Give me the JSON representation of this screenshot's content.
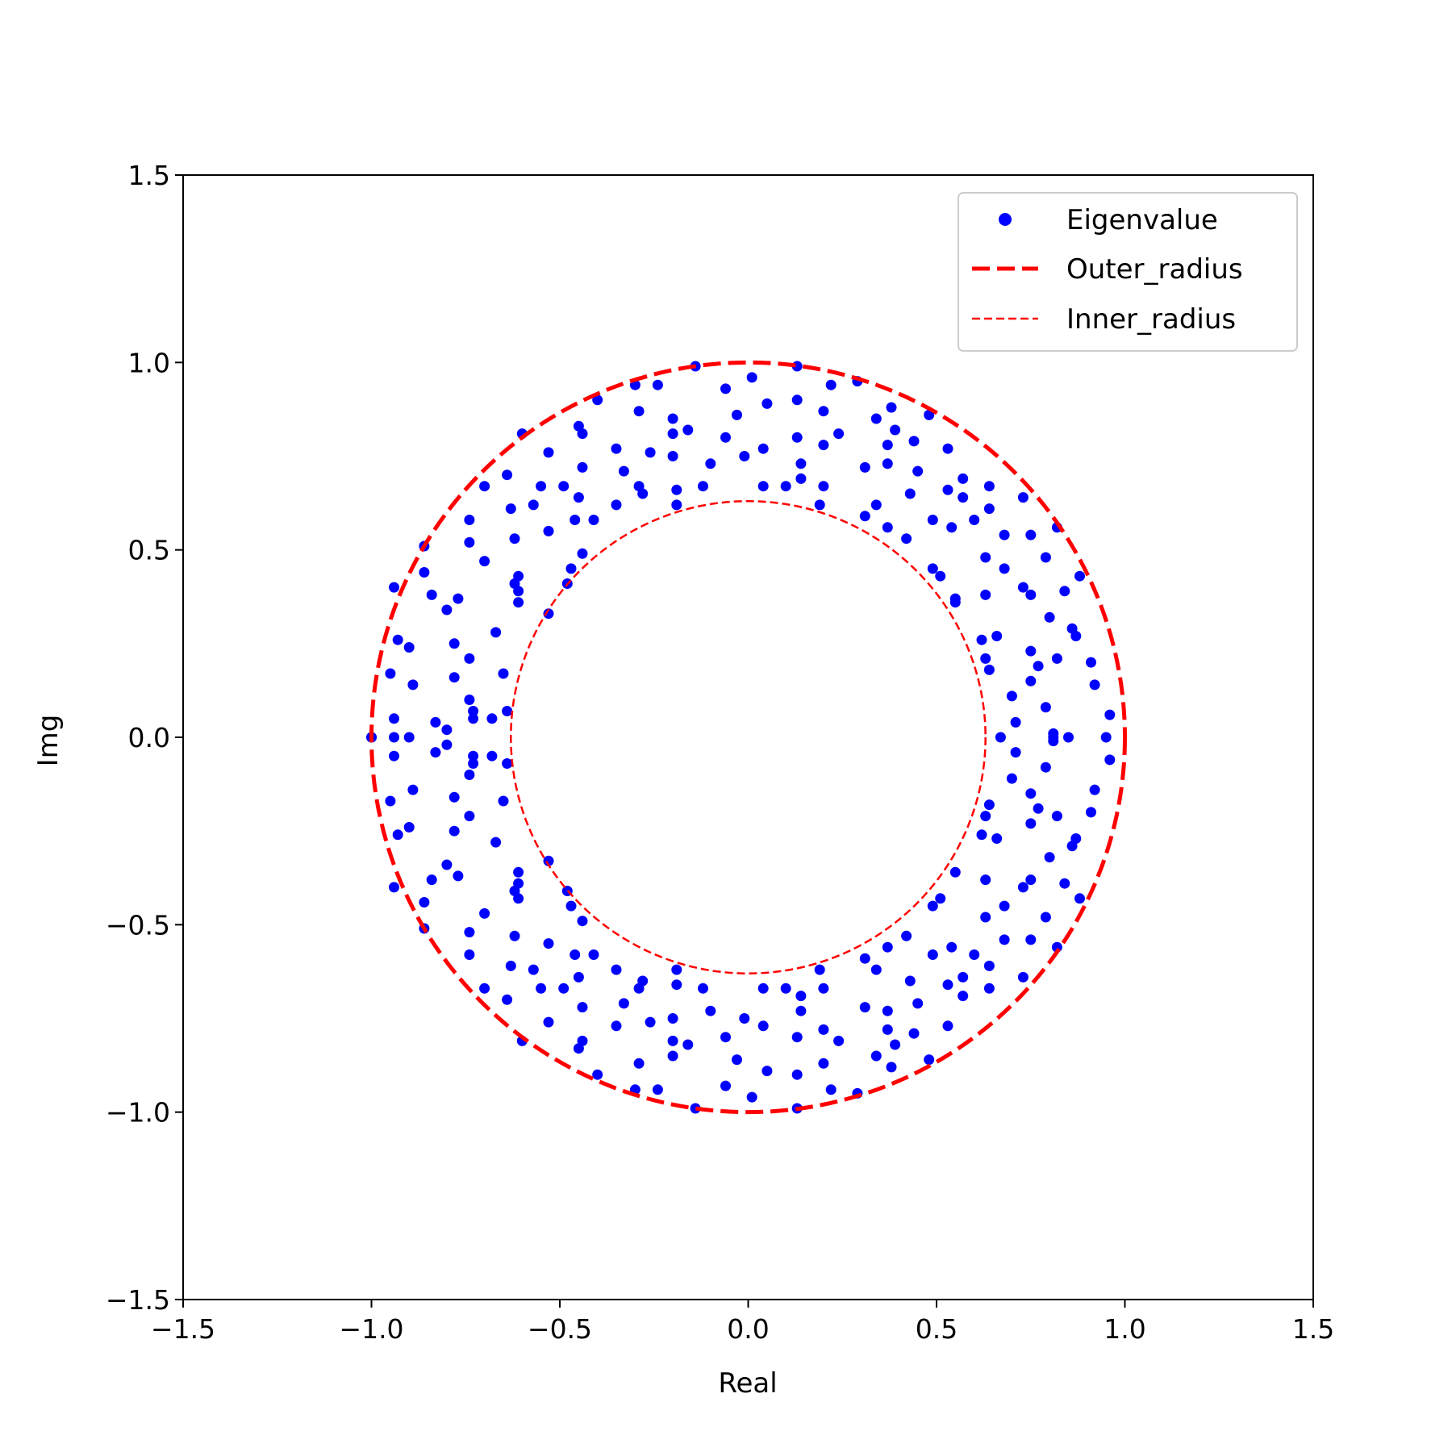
{
  "chart_data": {
    "type": "scatter",
    "title": "",
    "xlabel": "Real",
    "ylabel": "Img",
    "xlim": [
      -1.5,
      1.5
    ],
    "ylim": [
      -1.5,
      1.5
    ],
    "xticks": [
      "−1.5",
      "−1.0",
      "−0.5",
      "0.0",
      "0.5",
      "1.0",
      "1.5"
    ],
    "yticks": [
      "−1.5",
      "−1.0",
      "−0.5",
      "0.0",
      "0.5",
      "1.0",
      "1.5"
    ],
    "grid": false,
    "legend_position": "top-right",
    "colors": {
      "eigenvalue": "#0000ff",
      "outer_radius": "#ff0000",
      "inner_radius": "#ff0000"
    },
    "series": [
      {
        "name": "Eigenvalue",
        "kind": "points",
        "points": [
          [
            -1.0,
            0.0
          ],
          [
            -0.94,
            0.4
          ],
          [
            -0.93,
            0.26
          ],
          [
            -0.95,
            0.17
          ],
          [
            -0.94,
            0.05
          ],
          [
            -0.94,
            0.0
          ],
          [
            -0.9,
            0.24
          ],
          [
            -0.89,
            0.14
          ],
          [
            -0.9,
            0.0
          ],
          [
            -0.86,
            0.51
          ],
          [
            -0.86,
            0.44
          ],
          [
            -0.84,
            0.38
          ],
          [
            -0.83,
            0.04
          ],
          [
            -0.8,
            0.02
          ],
          [
            -0.8,
            0.34
          ],
          [
            -0.78,
            0.25
          ],
          [
            -0.78,
            0.16
          ],
          [
            -0.77,
            0.37
          ],
          [
            -0.74,
            0.58
          ],
          [
            -0.74,
            0.52
          ],
          [
            -0.74,
            0.21
          ],
          [
            -0.74,
            0.1
          ],
          [
            -0.73,
            0.07
          ],
          [
            -0.73,
            0.05
          ],
          [
            -0.7,
            0.67
          ],
          [
            -0.7,
            0.47
          ],
          [
            -0.68,
            0.05
          ],
          [
            -0.67,
            0.28
          ],
          [
            -0.65,
            0.17
          ],
          [
            -0.64,
            0.7
          ],
          [
            -0.63,
            0.61
          ],
          [
            -0.62,
            0.53
          ],
          [
            -0.62,
            0.41
          ],
          [
            -0.61,
            0.39
          ],
          [
            -0.61,
            0.36
          ],
          [
            -0.61,
            0.43
          ],
          [
            -0.64,
            0.07
          ],
          [
            -0.6,
            0.81
          ],
          [
            -0.57,
            0.62
          ],
          [
            -0.55,
            0.67
          ],
          [
            -0.53,
            0.76
          ],
          [
            -0.53,
            0.55
          ],
          [
            -0.53,
            0.33
          ],
          [
            -0.49,
            0.67
          ],
          [
            -0.48,
            0.41
          ],
          [
            -0.47,
            0.45
          ],
          [
            -0.46,
            0.58
          ],
          [
            -0.45,
            0.64
          ],
          [
            -0.45,
            0.83
          ],
          [
            -0.44,
            0.81
          ],
          [
            -0.44,
            0.72
          ],
          [
            -0.44,
            0.49
          ],
          [
            -0.41,
            0.58
          ],
          [
            -0.4,
            0.9
          ],
          [
            -0.35,
            0.77
          ],
          [
            -0.35,
            0.62
          ],
          [
            -0.33,
            0.71
          ],
          [
            -0.3,
            0.94
          ],
          [
            -0.29,
            0.87
          ],
          [
            -0.29,
            0.67
          ],
          [
            -0.28,
            0.65
          ],
          [
            -0.26,
            0.76
          ],
          [
            -0.24,
            0.94
          ],
          [
            -0.2,
            0.85
          ],
          [
            -0.2,
            0.81
          ],
          [
            -0.2,
            0.75
          ],
          [
            -0.19,
            0.66
          ],
          [
            -0.19,
            0.62
          ],
          [
            -0.16,
            0.82
          ],
          [
            -0.14,
            0.99
          ],
          [
            -0.12,
            0.67
          ],
          [
            -0.1,
            0.73
          ],
          [
            -0.06,
            0.93
          ],
          [
            -0.06,
            0.8
          ],
          [
            -0.03,
            0.86
          ],
          [
            -0.01,
            0.75
          ],
          [
            0.01,
            0.96
          ],
          [
            0.04,
            0.77
          ],
          [
            0.05,
            0.89
          ],
          [
            0.04,
            0.67
          ],
          [
            0.1,
            0.67
          ],
          [
            0.13,
            0.9
          ],
          [
            0.13,
            0.99
          ],
          [
            0.13,
            0.8
          ],
          [
            0.14,
            0.73
          ],
          [
            0.14,
            0.69
          ],
          [
            0.19,
            0.62
          ],
          [
            0.2,
            0.87
          ],
          [
            0.2,
            0.78
          ],
          [
            0.2,
            0.67
          ],
          [
            0.22,
            0.94
          ],
          [
            0.24,
            0.81
          ],
          [
            0.29,
            0.95
          ],
          [
            0.31,
            0.72
          ],
          [
            0.31,
            0.59
          ],
          [
            0.34,
            0.85
          ],
          [
            0.34,
            0.62
          ],
          [
            0.37,
            0.78
          ],
          [
            0.37,
            0.73
          ],
          [
            0.37,
            0.56
          ],
          [
            0.38,
            0.88
          ],
          [
            0.39,
            0.82
          ],
          [
            0.42,
            0.53
          ],
          [
            0.43,
            0.65
          ],
          [
            0.44,
            0.79
          ],
          [
            0.45,
            0.71
          ],
          [
            0.48,
            0.86
          ],
          [
            0.49,
            0.58
          ],
          [
            0.49,
            0.45
          ],
          [
            0.51,
            0.43
          ],
          [
            0.53,
            0.77
          ],
          [
            0.53,
            0.66
          ],
          [
            0.54,
            0.56
          ],
          [
            0.55,
            0.36
          ],
          [
            0.57,
            0.64
          ],
          [
            0.57,
            0.69
          ],
          [
            0.6,
            0.58
          ],
          [
            0.62,
            0.26
          ],
          [
            0.63,
            0.48
          ],
          [
            0.63,
            0.38
          ],
          [
            0.63,
            0.21
          ],
          [
            0.64,
            0.18
          ],
          [
            0.64,
            0.67
          ],
          [
            0.64,
            0.61
          ],
          [
            0.66,
            0.27
          ],
          [
            0.67,
            0.0
          ],
          [
            0.68,
            0.54
          ],
          [
            0.68,
            0.45
          ],
          [
            0.7,
            0.11
          ],
          [
            0.71,
            0.04
          ],
          [
            0.73,
            0.64
          ],
          [
            0.73,
            0.4
          ],
          [
            0.75,
            0.54
          ],
          [
            0.75,
            0.38
          ],
          [
            0.75,
            0.23
          ],
          [
            0.75,
            0.15
          ],
          [
            0.77,
            0.19
          ],
          [
            0.79,
            0.48
          ],
          [
            0.79,
            0.08
          ],
          [
            0.8,
            0.32
          ],
          [
            0.81,
            0.01
          ],
          [
            0.81,
            0.0
          ],
          [
            0.82,
            0.56
          ],
          [
            0.82,
            0.21
          ],
          [
            0.84,
            0.39
          ],
          [
            0.86,
            0.29
          ],
          [
            0.87,
            0.27
          ],
          [
            0.88,
            0.43
          ],
          [
            0.91,
            0.2
          ],
          [
            0.92,
            0.14
          ],
          [
            0.95,
            0.0
          ],
          [
            0.96,
            0.06
          ],
          [
            0.85,
            0.0
          ],
          [
            0.55,
            0.37
          ],
          [
            -1.0,
            -0.0
          ],
          [
            -0.94,
            -0.4
          ],
          [
            -0.93,
            -0.26
          ],
          [
            -0.95,
            -0.17
          ],
          [
            -0.94,
            -0.05
          ],
          [
            -0.9,
            -0.24
          ],
          [
            -0.89,
            -0.14
          ],
          [
            -0.86,
            -0.51
          ],
          [
            -0.86,
            -0.44
          ],
          [
            -0.84,
            -0.38
          ],
          [
            -0.83,
            -0.04
          ],
          [
            -0.8,
            -0.02
          ],
          [
            -0.8,
            -0.34
          ],
          [
            -0.78,
            -0.25
          ],
          [
            -0.78,
            -0.16
          ],
          [
            -0.77,
            -0.37
          ],
          [
            -0.74,
            -0.58
          ],
          [
            -0.74,
            -0.52
          ],
          [
            -0.74,
            -0.21
          ],
          [
            -0.74,
            -0.1
          ],
          [
            -0.73,
            -0.07
          ],
          [
            -0.73,
            -0.05
          ],
          [
            -0.7,
            -0.67
          ],
          [
            -0.7,
            -0.47
          ],
          [
            -0.68,
            -0.05
          ],
          [
            -0.67,
            -0.28
          ],
          [
            -0.65,
            -0.17
          ],
          [
            -0.64,
            -0.7
          ],
          [
            -0.63,
            -0.61
          ],
          [
            -0.62,
            -0.53
          ],
          [
            -0.62,
            -0.41
          ],
          [
            -0.61,
            -0.39
          ],
          [
            -0.61,
            -0.36
          ],
          [
            -0.61,
            -0.43
          ],
          [
            -0.64,
            -0.07
          ],
          [
            -0.6,
            -0.81
          ],
          [
            -0.57,
            -0.62
          ],
          [
            -0.55,
            -0.67
          ],
          [
            -0.53,
            -0.76
          ],
          [
            -0.53,
            -0.55
          ],
          [
            -0.53,
            -0.33
          ],
          [
            -0.49,
            -0.67
          ],
          [
            -0.48,
            -0.41
          ],
          [
            -0.47,
            -0.45
          ],
          [
            -0.46,
            -0.58
          ],
          [
            -0.45,
            -0.64
          ],
          [
            -0.45,
            -0.83
          ],
          [
            -0.44,
            -0.81
          ],
          [
            -0.44,
            -0.72
          ],
          [
            -0.44,
            -0.49
          ],
          [
            -0.41,
            -0.58
          ],
          [
            -0.4,
            -0.9
          ],
          [
            -0.35,
            -0.77
          ],
          [
            -0.35,
            -0.62
          ],
          [
            -0.33,
            -0.71
          ],
          [
            -0.3,
            -0.94
          ],
          [
            -0.29,
            -0.87
          ],
          [
            -0.29,
            -0.67
          ],
          [
            -0.28,
            -0.65
          ],
          [
            -0.26,
            -0.76
          ],
          [
            -0.24,
            -0.94
          ],
          [
            -0.2,
            -0.85
          ],
          [
            -0.2,
            -0.81
          ],
          [
            -0.2,
            -0.75
          ],
          [
            -0.19,
            -0.66
          ],
          [
            -0.19,
            -0.62
          ],
          [
            -0.16,
            -0.82
          ],
          [
            -0.14,
            -0.99
          ],
          [
            -0.12,
            -0.67
          ],
          [
            -0.1,
            -0.73
          ],
          [
            -0.06,
            -0.93
          ],
          [
            -0.06,
            -0.8
          ],
          [
            -0.03,
            -0.86
          ],
          [
            -0.01,
            -0.75
          ],
          [
            0.01,
            -0.96
          ],
          [
            0.04,
            -0.77
          ],
          [
            0.05,
            -0.89
          ],
          [
            0.04,
            -0.67
          ],
          [
            0.1,
            -0.67
          ],
          [
            0.13,
            -0.9
          ],
          [
            0.13,
            -0.99
          ],
          [
            0.13,
            -0.8
          ],
          [
            0.14,
            -0.73
          ],
          [
            0.14,
            -0.69
          ],
          [
            0.19,
            -0.62
          ],
          [
            0.2,
            -0.87
          ],
          [
            0.2,
            -0.78
          ],
          [
            0.2,
            -0.67
          ],
          [
            0.22,
            -0.94
          ],
          [
            0.24,
            -0.81
          ],
          [
            0.29,
            -0.95
          ],
          [
            0.31,
            -0.72
          ],
          [
            0.31,
            -0.59
          ],
          [
            0.34,
            -0.85
          ],
          [
            0.34,
            -0.62
          ],
          [
            0.37,
            -0.78
          ],
          [
            0.37,
            -0.73
          ],
          [
            0.37,
            -0.56
          ],
          [
            0.38,
            -0.88
          ],
          [
            0.39,
            -0.82
          ],
          [
            0.42,
            -0.53
          ],
          [
            0.43,
            -0.65
          ],
          [
            0.44,
            -0.79
          ],
          [
            0.45,
            -0.71
          ],
          [
            0.48,
            -0.86
          ],
          [
            0.49,
            -0.58
          ],
          [
            0.49,
            -0.45
          ],
          [
            0.51,
            -0.43
          ],
          [
            0.53,
            -0.77
          ],
          [
            0.53,
            -0.66
          ],
          [
            0.54,
            -0.56
          ],
          [
            0.55,
            -0.36
          ],
          [
            0.57,
            -0.64
          ],
          [
            0.57,
            -0.69
          ],
          [
            0.6,
            -0.58
          ],
          [
            0.62,
            -0.26
          ],
          [
            0.63,
            -0.48
          ],
          [
            0.63,
            -0.38
          ],
          [
            0.63,
            -0.21
          ],
          [
            0.64,
            -0.18
          ],
          [
            0.64,
            -0.67
          ],
          [
            0.64,
            -0.61
          ],
          [
            0.66,
            -0.27
          ],
          [
            0.68,
            -0.54
          ],
          [
            0.68,
            -0.45
          ],
          [
            0.7,
            -0.11
          ],
          [
            0.71,
            -0.04
          ],
          [
            0.73,
            -0.64
          ],
          [
            0.73,
            -0.4
          ],
          [
            0.75,
            -0.54
          ],
          [
            0.75,
            -0.38
          ],
          [
            0.75,
            -0.23
          ],
          [
            0.75,
            -0.15
          ],
          [
            0.77,
            -0.19
          ],
          [
            0.79,
            -0.48
          ],
          [
            0.79,
            -0.08
          ],
          [
            0.8,
            -0.32
          ],
          [
            0.81,
            -0.01
          ],
          [
            0.82,
            -0.56
          ],
          [
            0.82,
            -0.21
          ],
          [
            0.84,
            -0.39
          ],
          [
            0.86,
            -0.29
          ],
          [
            0.87,
            -0.27
          ],
          [
            0.88,
            -0.43
          ],
          [
            0.91,
            -0.2
          ],
          [
            0.92,
            -0.14
          ],
          [
            0.96,
            -0.06
          ]
        ]
      },
      {
        "name": "Outer_radius",
        "kind": "circle",
        "radius": 1.0,
        "line_style": "dashed-thick"
      },
      {
        "name": "Inner_radius",
        "kind": "circle",
        "radius": 0.63,
        "line_style": "dashed-thin"
      }
    ]
  }
}
